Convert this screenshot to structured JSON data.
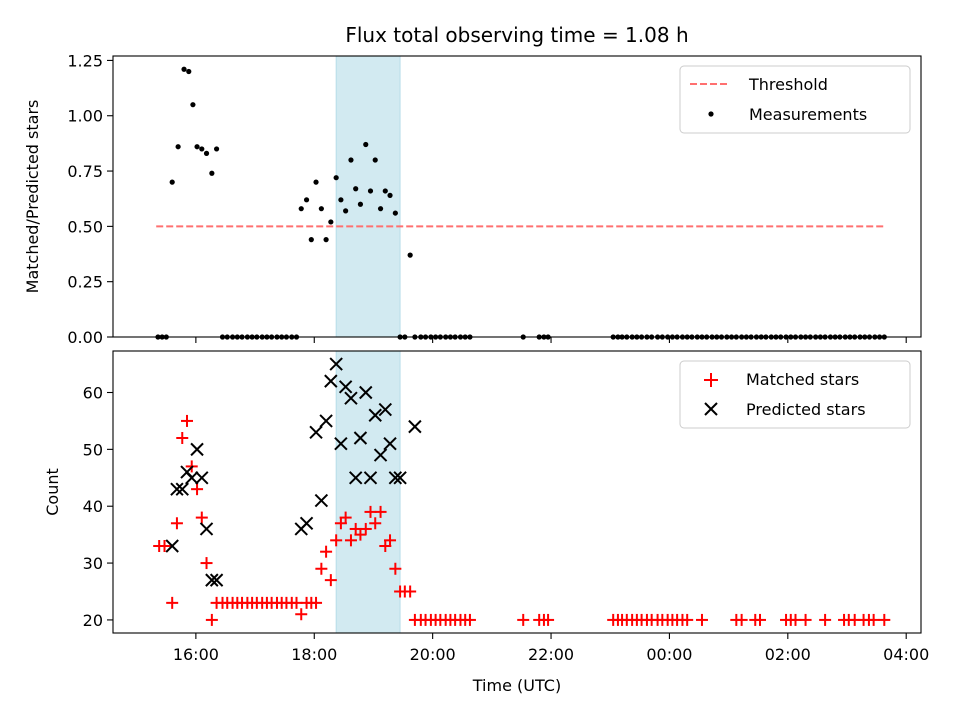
{
  "title": "Flux total observing time = 1.08 h",
  "xlabel": "Time (UTC)",
  "x_tick_labels": [
    "16:00",
    "18:00",
    "20:00",
    "22:00",
    "00:00",
    "02:00",
    "04:00"
  ],
  "x_tick_hours": [
    16,
    18,
    20,
    22,
    24,
    26,
    28
  ],
  "xlim_hours": [
    14.6,
    28.25
  ],
  "shaded_interval_hours": [
    18.37,
    19.45
  ],
  "shade_color": "#add8e6",
  "chart_data": [
    {
      "type": "scatter",
      "ylabel": "Matched/Predicted stars",
      "ylim": [
        0,
        1.27
      ],
      "y_ticks": [
        0.0,
        0.25,
        0.5,
        0.75,
        1.0,
        1.25
      ],
      "y_tick_labels": [
        "0.00",
        "0.25",
        "0.50",
        "0.75",
        "1.00",
        "1.25"
      ],
      "legend_position": "top-right",
      "threshold": {
        "name": "Threshold",
        "y": 0.5,
        "x_range_hours": [
          15.33,
          27.63
        ],
        "color": "#ff7070",
        "style": "dashed"
      },
      "series": [
        {
          "name": "Measurements",
          "marker": "dot",
          "color": "#000000",
          "x_hours": [
            15.36,
            15.43,
            15.5,
            15.6,
            15.7,
            15.8,
            15.88,
            15.95,
            16.02,
            16.1,
            16.18,
            16.27,
            16.35,
            16.45,
            16.53,
            16.62,
            16.7,
            16.78,
            16.87,
            16.95,
            17.03,
            17.12,
            17.2,
            17.28,
            17.37,
            17.45,
            17.53,
            17.62,
            17.7,
            17.78,
            17.87,
            17.95,
            18.03,
            18.12,
            18.2,
            18.28,
            18.37,
            18.45,
            18.53,
            18.62,
            18.7,
            18.78,
            18.87,
            18.95,
            19.03,
            19.12,
            19.2,
            19.28,
            19.37,
            19.45,
            19.53,
            19.62,
            19.7,
            19.8,
            19.88,
            19.97,
            20.05,
            20.13,
            20.22,
            20.3,
            20.38,
            20.47,
            20.55,
            20.63,
            21.53,
            21.8,
            21.88,
            21.95,
            23.05,
            23.13,
            23.2,
            23.28,
            23.37,
            23.45,
            23.53,
            23.62,
            23.7,
            23.8,
            23.88,
            23.97,
            24.05,
            24.13,
            24.22,
            24.3,
            24.38,
            24.47,
            24.55,
            24.63,
            24.72,
            24.8,
            24.88,
            24.97,
            25.05,
            25.13,
            25.22,
            25.3,
            25.38,
            25.47,
            25.55,
            25.63,
            25.72,
            25.8,
            25.88,
            25.97,
            26.05,
            26.13,
            26.22,
            26.3,
            26.38,
            26.47,
            26.55,
            26.63,
            26.72,
            26.8,
            26.88,
            26.97,
            27.05,
            27.13,
            27.22,
            27.3,
            27.38,
            27.47,
            27.55,
            27.63
          ],
          "y": [
            0,
            0,
            0,
            0.7,
            0.86,
            1.21,
            1.2,
            1.05,
            0.86,
            0.85,
            0.83,
            0.74,
            0.85,
            0,
            0,
            0,
            0,
            0,
            0,
            0,
            0,
            0,
            0,
            0,
            0,
            0,
            0,
            0,
            0,
            0.58,
            0.62,
            0.44,
            0.7,
            0.58,
            0.44,
            0.52,
            0.72,
            0.62,
            0.57,
            0.8,
            0.67,
            0.6,
            0.87,
            0.66,
            0.8,
            0.58,
            0.66,
            0.64,
            0.56,
            0,
            0,
            0.37,
            0,
            0,
            0,
            0,
            0,
            0,
            0,
            0,
            0,
            0,
            0,
            0,
            0,
            0,
            0,
            0,
            0,
            0,
            0,
            0,
            0,
            0,
            0,
            0,
            0,
            0,
            0,
            0,
            0,
            0,
            0,
            0,
            0,
            0,
            0,
            0,
            0,
            0,
            0,
            0,
            0,
            0,
            0,
            0,
            0,
            0,
            0,
            0,
            0,
            0,
            0,
            0,
            0,
            0,
            0,
            0,
            0,
            0,
            0,
            0,
            0,
            0,
            0,
            0,
            0,
            0,
            0,
            0,
            0,
            0,
            0,
            0
          ],
          "display": [
            1,
            1,
            1,
            1,
            1,
            1,
            1,
            1,
            1,
            1,
            1,
            1,
            1,
            1,
            1,
            1,
            1,
            1,
            1,
            1,
            1,
            1,
            1,
            1,
            1,
            1,
            1,
            1,
            1,
            1,
            1,
            1,
            1,
            1,
            1,
            1,
            1,
            1,
            1,
            1,
            1,
            1,
            1,
            1,
            1,
            1,
            1,
            1,
            1,
            1,
            1,
            1,
            1,
            1,
            1,
            1,
            1,
            1,
            1,
            1,
            1,
            1,
            1,
            1,
            1,
            1,
            1,
            1,
            1,
            1,
            1,
            1,
            1,
            1,
            1,
            1,
            1,
            1,
            1,
            1,
            1,
            1,
            1,
            1,
            1,
            1,
            1,
            1,
            1,
            1,
            1,
            1,
            1,
            1,
            1,
            1,
            1,
            1,
            1,
            1,
            1,
            1,
            1,
            1,
            1,
            1,
            1,
            1,
            1,
            1,
            1,
            1,
            1,
            1,
            1,
            1,
            1,
            1,
            1,
            1,
            1,
            1
          ]
        }
      ]
    },
    {
      "type": "scatter",
      "ylabel": "Count",
      "ylim": [
        17.7,
        67.3
      ],
      "y_ticks": [
        20,
        30,
        40,
        50,
        60
      ],
      "y_tick_labels": [
        "20",
        "30",
        "40",
        "50",
        "60"
      ],
      "legend_position": "top-right",
      "series": [
        {
          "name": "Matched stars",
          "marker": "plus",
          "color": "#ff0000",
          "x_hours": [
            15.38,
            15.47,
            15.6,
            15.68,
            15.77,
            15.85,
            15.93,
            16.02,
            16.1,
            16.18,
            16.27,
            16.35,
            16.45,
            16.53,
            16.62,
            16.7,
            16.78,
            16.87,
            16.95,
            17.03,
            17.12,
            17.2,
            17.28,
            17.37,
            17.45,
            17.53,
            17.62,
            17.7,
            17.78,
            17.87,
            17.95,
            18.03,
            18.12,
            18.2,
            18.28,
            18.37,
            18.45,
            18.53,
            18.62,
            18.7,
            18.78,
            18.87,
            18.95,
            19.03,
            19.12,
            19.2,
            19.28,
            19.37,
            19.45,
            19.53,
            19.62,
            19.7,
            19.8,
            19.88,
            19.97,
            20.05,
            20.13,
            20.22,
            20.3,
            20.38,
            20.47,
            20.55,
            20.63,
            21.53,
            21.8,
            21.88,
            21.95,
            23.05,
            23.13,
            23.2,
            23.28,
            23.37,
            23.45,
            23.53,
            23.62,
            23.7,
            23.8,
            23.88,
            23.97,
            24.05,
            24.13,
            24.22,
            24.3,
            24.55,
            25.13,
            25.22,
            25.45,
            25.53,
            25.97,
            26.05,
            26.13,
            26.3,
            26.63,
            26.95,
            27.03,
            27.13,
            27.28,
            27.37,
            27.45,
            27.63
          ],
          "y": [
            33,
            33,
            23,
            37,
            52,
            55,
            47,
            43,
            38,
            30,
            20,
            23,
            23,
            23,
            23,
            23,
            23,
            23,
            23,
            23,
            23,
            23,
            23,
            23,
            23,
            23,
            23,
            23,
            21,
            23,
            23,
            23,
            29,
            32,
            27,
            34,
            37,
            38,
            34,
            36,
            35,
            36,
            39,
            37,
            39,
            33,
            34,
            29,
            25,
            25,
            25,
            20,
            20,
            20,
            20,
            20,
            20,
            20,
            20,
            20,
            20,
            20,
            20,
            20,
            20,
            20,
            20,
            20,
            20,
            20,
            20,
            20,
            20,
            20,
            20,
            20,
            20,
            20,
            20,
            20,
            20,
            20,
            20,
            20,
            20,
            20,
            20,
            20,
            20,
            20,
            20,
            20,
            20,
            20,
            20,
            20,
            20,
            20,
            20,
            20
          ]
        },
        {
          "name": "Predicted stars",
          "marker": "x",
          "color": "#000000",
          "x_hours": [
            15.6,
            15.68,
            15.77,
            15.85,
            15.93,
            16.02,
            16.1,
            16.18,
            16.27,
            16.35,
            17.78,
            17.87,
            18.03,
            18.12,
            18.2,
            18.28,
            18.37,
            18.45,
            18.53,
            18.62,
            18.7,
            18.78,
            18.87,
            18.95,
            19.03,
            19.12,
            19.2,
            19.28,
            19.37,
            19.45,
            19.7
          ],
          "y": [
            33,
            43,
            43,
            46,
            45,
            50,
            45,
            36,
            27,
            27,
            36,
            37,
            53,
            41,
            55,
            62,
            65,
            51,
            61,
            59,
            45,
            52,
            60,
            45,
            56,
            49,
            57,
            51,
            45,
            45,
            54
          ]
        }
      ]
    }
  ]
}
